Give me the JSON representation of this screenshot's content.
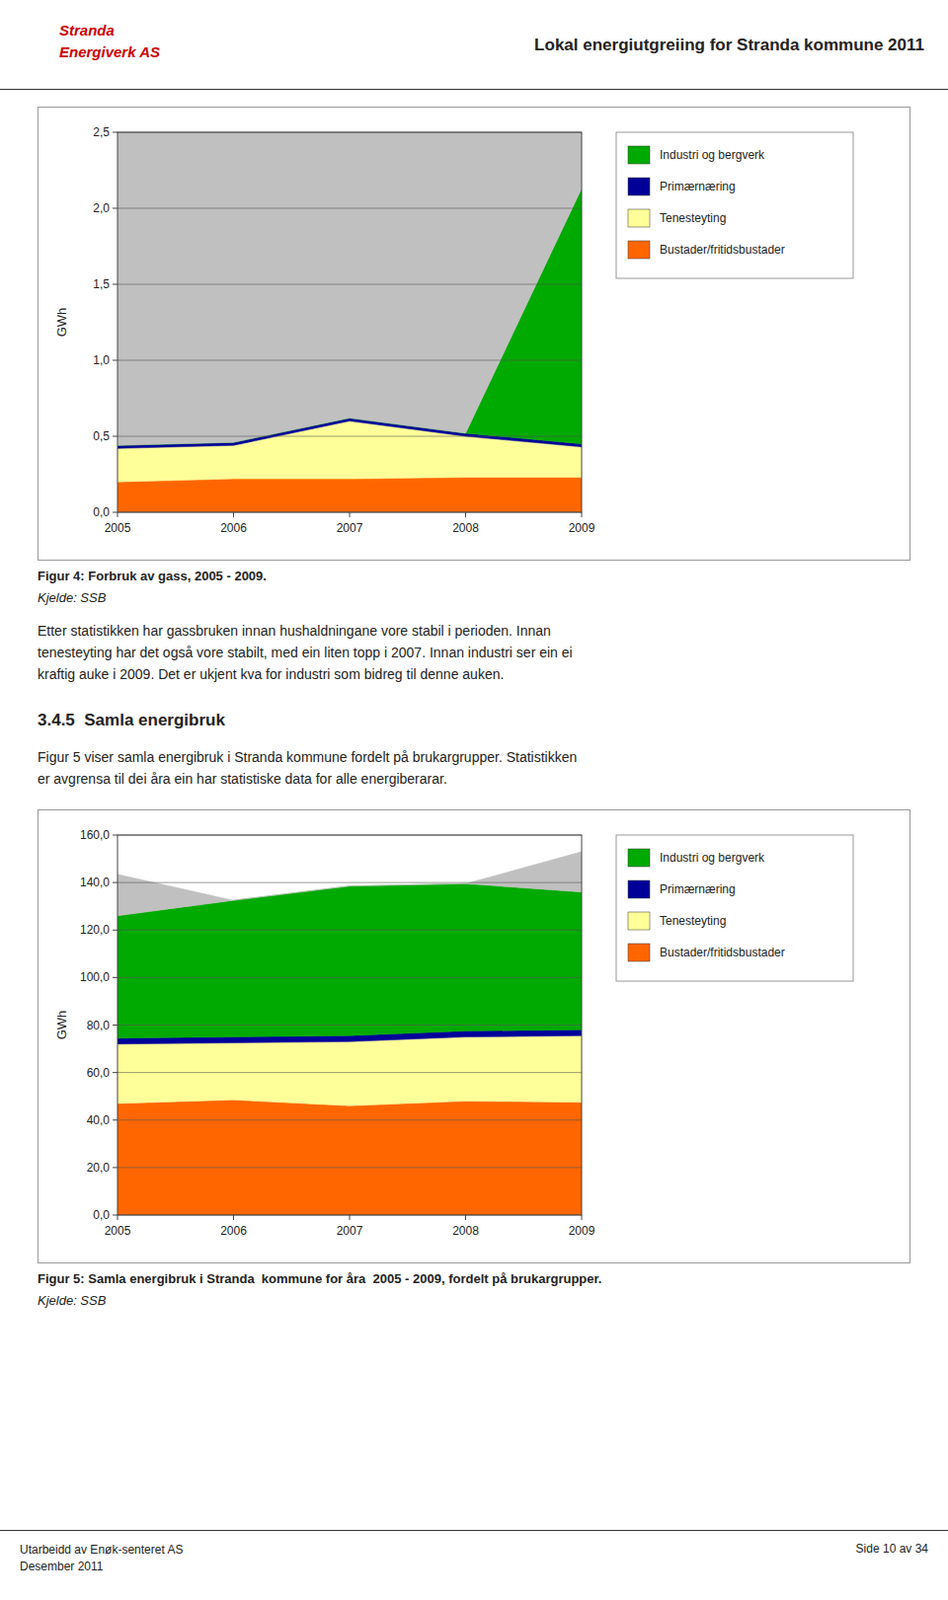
{
  "header_title": "Lokal energiutgreiing for Stranda kommune 2011",
  "logo": [
    "Stranda",
    "Energiverk AS"
  ],
  "text_block": "Etter statistikken har gassbruken innan hushaldningane vore stabil i perioden. Innan\ntenesteyting har det også vore stabilt, med ein liten topp i 2007. Innan industri ser ein ei\nkraftig auke i 2009. Det er ukjent kva for industri som bidreg til denne auken.",
  "section_title": "3.4.5  Samla energibruk",
  "section_text": "Figur 5 viser samla energibruk i Stranda kommune fordelt på brukargrupper. Statistikken\ner avgrensa til dei åra ein har statistiske data for alle energiberarar.",
  "footer_left": "Utarbeidd av Enøk-senteret AS\nDesember 2011",
  "footer_right": "Side 10 av 34",
  "chart_data": [
    {
      "type": "area",
      "stacked": true,
      "grid": true,
      "legend": "right",
      "title": "Figur 4: Forbruk av gass, 2005 - 2009.",
      "source": "Kjelde: SSB",
      "y_label": "GWh",
      "x": [
        2005,
        2006,
        2007,
        2008,
        2009
      ],
      "xlim": [
        2005,
        2009
      ],
      "xticks": [
        2005,
        2006,
        2007,
        2008,
        2009
      ],
      "ylim": [
        0,
        2.5
      ],
      "yticks": [
        {
          "value": 0.0,
          "label": "0,0"
        },
        {
          "value": 0.5,
          "label": "0,5"
        },
        {
          "value": 1.0,
          "label": "1,0"
        },
        {
          "value": 1.5,
          "label": "1,5"
        },
        {
          "value": 2.0,
          "label": "2,0"
        },
        {
          "value": 2.5,
          "label": "2,5"
        }
      ],
      "series": [
        {
          "name": "Bustader/fritidsbustader",
          "color": "#FF6600",
          "values": [
            0.2,
            0.22,
            0.22,
            0.23,
            0.23
          ]
        },
        {
          "name": "Tenesteyting",
          "color": "#FFFF99",
          "values": [
            0.22,
            0.22,
            0.38,
            0.27,
            0.2
          ]
        },
        {
          "name": "Primærnæring",
          "color": "#000099",
          "values": [
            0.02,
            0.02,
            0.02,
            0.02,
            0.02
          ]
        },
        {
          "name": "Industri og bergverk",
          "color": "#00AA00",
          "values": [
            0.0,
            0.0,
            0.0,
            0.0,
            1.68
          ]
        },
        {
          "color": "#C0C0C0",
          "values": [
            2.06,
            2.04,
            1.88,
            1.98,
            0.37
          ]
        }
      ]
    },
    {
      "type": "area",
      "stacked": true,
      "grid": true,
      "legend": "right",
      "title": "Figur 5: Samla energibruk i Stranda  kommune for åra  2005 - 2009, fordelt på brukargrupper.",
      "source": "Kjelde: SSB",
      "y_label": "GWh",
      "x": [
        2005,
        2006,
        2007,
        2008,
        2009
      ],
      "xlim": [
        2005,
        2009
      ],
      "xticks": [
        2005,
        2006,
        2007,
        2008,
        2009
      ],
      "ylim": [
        0,
        160
      ],
      "yticks": [
        {
          "value": 0.0,
          "label": "0,0"
        },
        {
          "value": 20.0,
          "label": "20,0"
        },
        {
          "value": 40.0,
          "label": "40,0"
        },
        {
          "value": 60.0,
          "label": "60,0"
        },
        {
          "value": 80.0,
          "label": "80,0"
        },
        {
          "value": 100.0,
          "label": "100,0"
        },
        {
          "value": 120.0,
          "label": "120,0"
        },
        {
          "value": 140.0,
          "label": "140,0"
        },
        {
          "value": 160.0,
          "label": "160,0"
        }
      ],
      "series": [
        {
          "name": "Bustader/fritidsbustader",
          "color": "#FF6600",
          "values": [
            47.0,
            48.5,
            46.0,
            48.0,
            47.5
          ]
        },
        {
          "name": "Tenesteyting",
          "color": "#FFFF99",
          "values": [
            25.0,
            24.0,
            27.0,
            27.0,
            28.0
          ]
        },
        {
          "name": "Primærnæring",
          "color": "#000099",
          "values": [
            2.5,
            2.5,
            2.5,
            2.5,
            2.5
          ]
        },
        {
          "name": "Industri og bergverk",
          "color": "#00AA00",
          "values": [
            51.5,
            57.5,
            63.0,
            62.0,
            58.0
          ]
        },
        {
          "color": "#C0C0C0",
          "values": [
            17.5,
            0.0,
            0.0,
            0.0,
            17.0
          ]
        }
      ]
    }
  ]
}
